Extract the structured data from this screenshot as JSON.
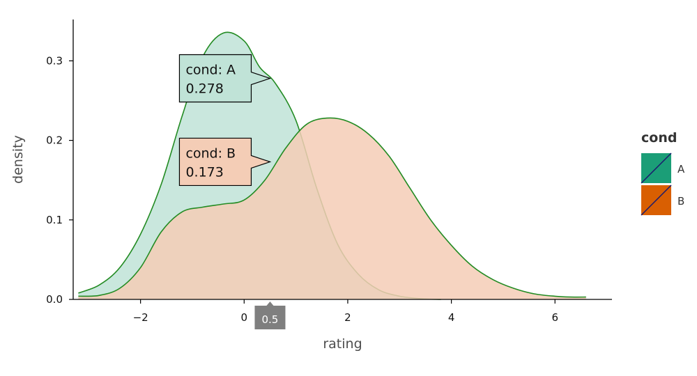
{
  "chart_data": {
    "type": "area",
    "xlabel": "rating",
    "ylabel": "density",
    "xlim": [
      -3.3,
      7.1
    ],
    "ylim": [
      0,
      0.352
    ],
    "x_ticks": [
      -2,
      0,
      2,
      4,
      6
    ],
    "x_tick_labels": [
      "−2",
      "0",
      "2",
      "4",
      "6"
    ],
    "y_ticks": [
      0,
      0.1,
      0.2,
      0.3
    ],
    "y_tick_labels": [
      "0.0",
      "0.1",
      "0.2",
      "0.3"
    ],
    "grid": false,
    "legend": {
      "title": "cond",
      "placement": "right"
    },
    "series": [
      {
        "name": "A",
        "color": "#1b9e77",
        "fill": "#c0e3d7",
        "line_color": "#228b22",
        "x": [
          -3.2,
          -2.8,
          -2.4,
          -2.0,
          -1.6,
          -1.2,
          -0.8,
          -0.4,
          0.0,
          0.3,
          0.6,
          1.0,
          1.4,
          1.8,
          2.2,
          2.6,
          3.0,
          3.4,
          3.8
        ],
        "y": [
          0.008,
          0.018,
          0.04,
          0.082,
          0.145,
          0.23,
          0.305,
          0.335,
          0.325,
          0.292,
          0.272,
          0.225,
          0.14,
          0.07,
          0.032,
          0.012,
          0.004,
          0.001,
          0.0
        ]
      },
      {
        "name": "B",
        "color": "#d95f02",
        "fill": "#f4cdb6",
        "line_color": "#228b22",
        "x": [
          -3.2,
          -2.8,
          -2.4,
          -2.0,
          -1.6,
          -1.2,
          -0.8,
          -0.4,
          0.0,
          0.4,
          0.8,
          1.2,
          1.6,
          2.0,
          2.4,
          2.8,
          3.2,
          3.6,
          4.0,
          4.4,
          4.8,
          5.2,
          5.6,
          6.0,
          6.3,
          6.6
        ],
        "y": [
          0.004,
          0.005,
          0.014,
          0.04,
          0.085,
          0.11,
          0.116,
          0.12,
          0.125,
          0.15,
          0.19,
          0.22,
          0.228,
          0.224,
          0.208,
          0.18,
          0.14,
          0.1,
          0.068,
          0.042,
          0.025,
          0.014,
          0.007,
          0.004,
          0.003,
          0.003
        ]
      }
    ],
    "cursor": {
      "x": 0.5,
      "label": "0.5"
    },
    "tooltips": [
      {
        "series": "A",
        "line1": "cond: A",
        "line2": "0.278",
        "y": 0.278
      },
      {
        "series": "B",
        "line1": "cond: B",
        "line2": "0.173",
        "y": 0.173
      }
    ]
  }
}
